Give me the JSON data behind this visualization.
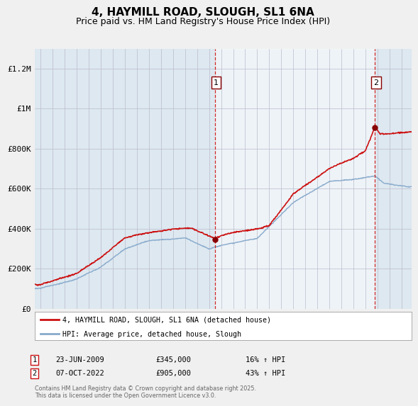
{
  "title": "4, HAYMILL ROAD, SLOUGH, SL1 6NA",
  "subtitle": "Price paid vs. HM Land Registry's House Price Index (HPI)",
  "ylabel_ticks": [
    "£0",
    "£200K",
    "£400K",
    "£600K",
    "£800K",
    "£1M",
    "£1.2M"
  ],
  "ytick_vals": [
    0,
    200000,
    400000,
    600000,
    800000,
    1000000,
    1200000
  ],
  "ylim": [
    0,
    1300000
  ],
  "xlim_start": 1994.5,
  "xlim_end": 2025.8,
  "line_color_property": "#cc1111",
  "line_color_hpi": "#88aacc",
  "vline_color": "#cc1111",
  "shade_color": "#ddeeff",
  "marker1_x": 2009.48,
  "marker1_y": 345000,
  "marker2_x": 2022.77,
  "marker2_y": 905000,
  "legend_property": "4, HAYMILL ROAD, SLOUGH, SL1 6NA (detached house)",
  "legend_hpi": "HPI: Average price, detached house, Slough",
  "note1_label": "1",
  "note1_date": "23-JUN-2009",
  "note1_price": "£345,000",
  "note1_hpi": "16% ↑ HPI",
  "note2_label": "2",
  "note2_date": "07-OCT-2022",
  "note2_price": "£905,000",
  "note2_hpi": "43% ↑ HPI",
  "footer": "Contains HM Land Registry data © Crown copyright and database right 2025.\nThis data is licensed under the Open Government Licence v3.0.",
  "background_color": "#f0f0f0",
  "plot_bg_color": "#dde8f0",
  "grid_color": "#bbbbcc",
  "title_fontsize": 11,
  "subtitle_fontsize": 9,
  "tick_fontsize": 8
}
